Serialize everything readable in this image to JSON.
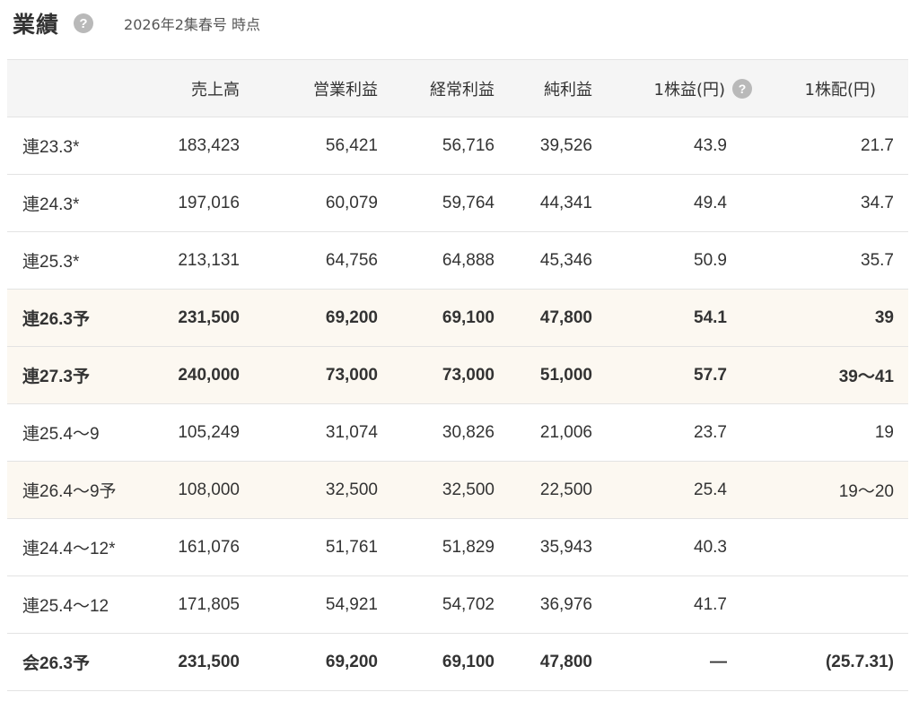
{
  "header": {
    "title": "業績",
    "help_icon": "?",
    "as_of": "2026年2集春号 時点"
  },
  "table": {
    "columns": [
      "",
      "売上高",
      "営業利益",
      "経常利益",
      "純利益",
      "1株益(円)",
      "1株配(円)"
    ],
    "eps_help_icon": "?",
    "rows": [
      {
        "label": "連23.3*",
        "sales": "183,423",
        "op_profit": "56,421",
        "ord_profit": "56,716",
        "net_profit": "39,526",
        "eps": "43.9",
        "dps": "21.7",
        "forecast": false,
        "bold": false
      },
      {
        "label": "連24.3*",
        "sales": "197,016",
        "op_profit": "60,079",
        "ord_profit": "59,764",
        "net_profit": "44,341",
        "eps": "49.4",
        "dps": "34.7",
        "forecast": false,
        "bold": false
      },
      {
        "label": "連25.3*",
        "sales": "213,131",
        "op_profit": "64,756",
        "ord_profit": "64,888",
        "net_profit": "45,346",
        "eps": "50.9",
        "dps": "35.7",
        "forecast": false,
        "bold": false
      },
      {
        "label": "連26.3予",
        "sales": "231,500",
        "op_profit": "69,200",
        "ord_profit": "69,100",
        "net_profit": "47,800",
        "eps": "54.1",
        "dps": "39",
        "forecast": true,
        "bold": true
      },
      {
        "label": "連27.3予",
        "sales": "240,000",
        "op_profit": "73,000",
        "ord_profit": "73,000",
        "net_profit": "51,000",
        "eps": "57.7",
        "dps": "39〜41",
        "forecast": true,
        "bold": true
      },
      {
        "label": "連25.4〜9",
        "sales": "105,249",
        "op_profit": "31,074",
        "ord_profit": "30,826",
        "net_profit": "21,006",
        "eps": "23.7",
        "dps": "19",
        "forecast": false,
        "bold": false
      },
      {
        "label": "連26.4〜9予",
        "sales": "108,000",
        "op_profit": "32,500",
        "ord_profit": "32,500",
        "net_profit": "22,500",
        "eps": "25.4",
        "dps": "19〜20",
        "forecast": true,
        "bold": false
      },
      {
        "label": "連24.4〜12*",
        "sales": "161,076",
        "op_profit": "51,761",
        "ord_profit": "51,829",
        "net_profit": "35,943",
        "eps": "40.3",
        "dps": "",
        "forecast": false,
        "bold": false
      },
      {
        "label": "連25.4〜12",
        "sales": "171,805",
        "op_profit": "54,921",
        "ord_profit": "54,702",
        "net_profit": "36,976",
        "eps": "41.7",
        "dps": "",
        "forecast": false,
        "bold": false
      },
      {
        "label": "会26.3予",
        "sales": "231,500",
        "op_profit": "69,200",
        "ord_profit": "69,100",
        "net_profit": "47,800",
        "eps": "—",
        "dps": "(25.7.31)",
        "forecast": false,
        "bold": true
      }
    ]
  }
}
